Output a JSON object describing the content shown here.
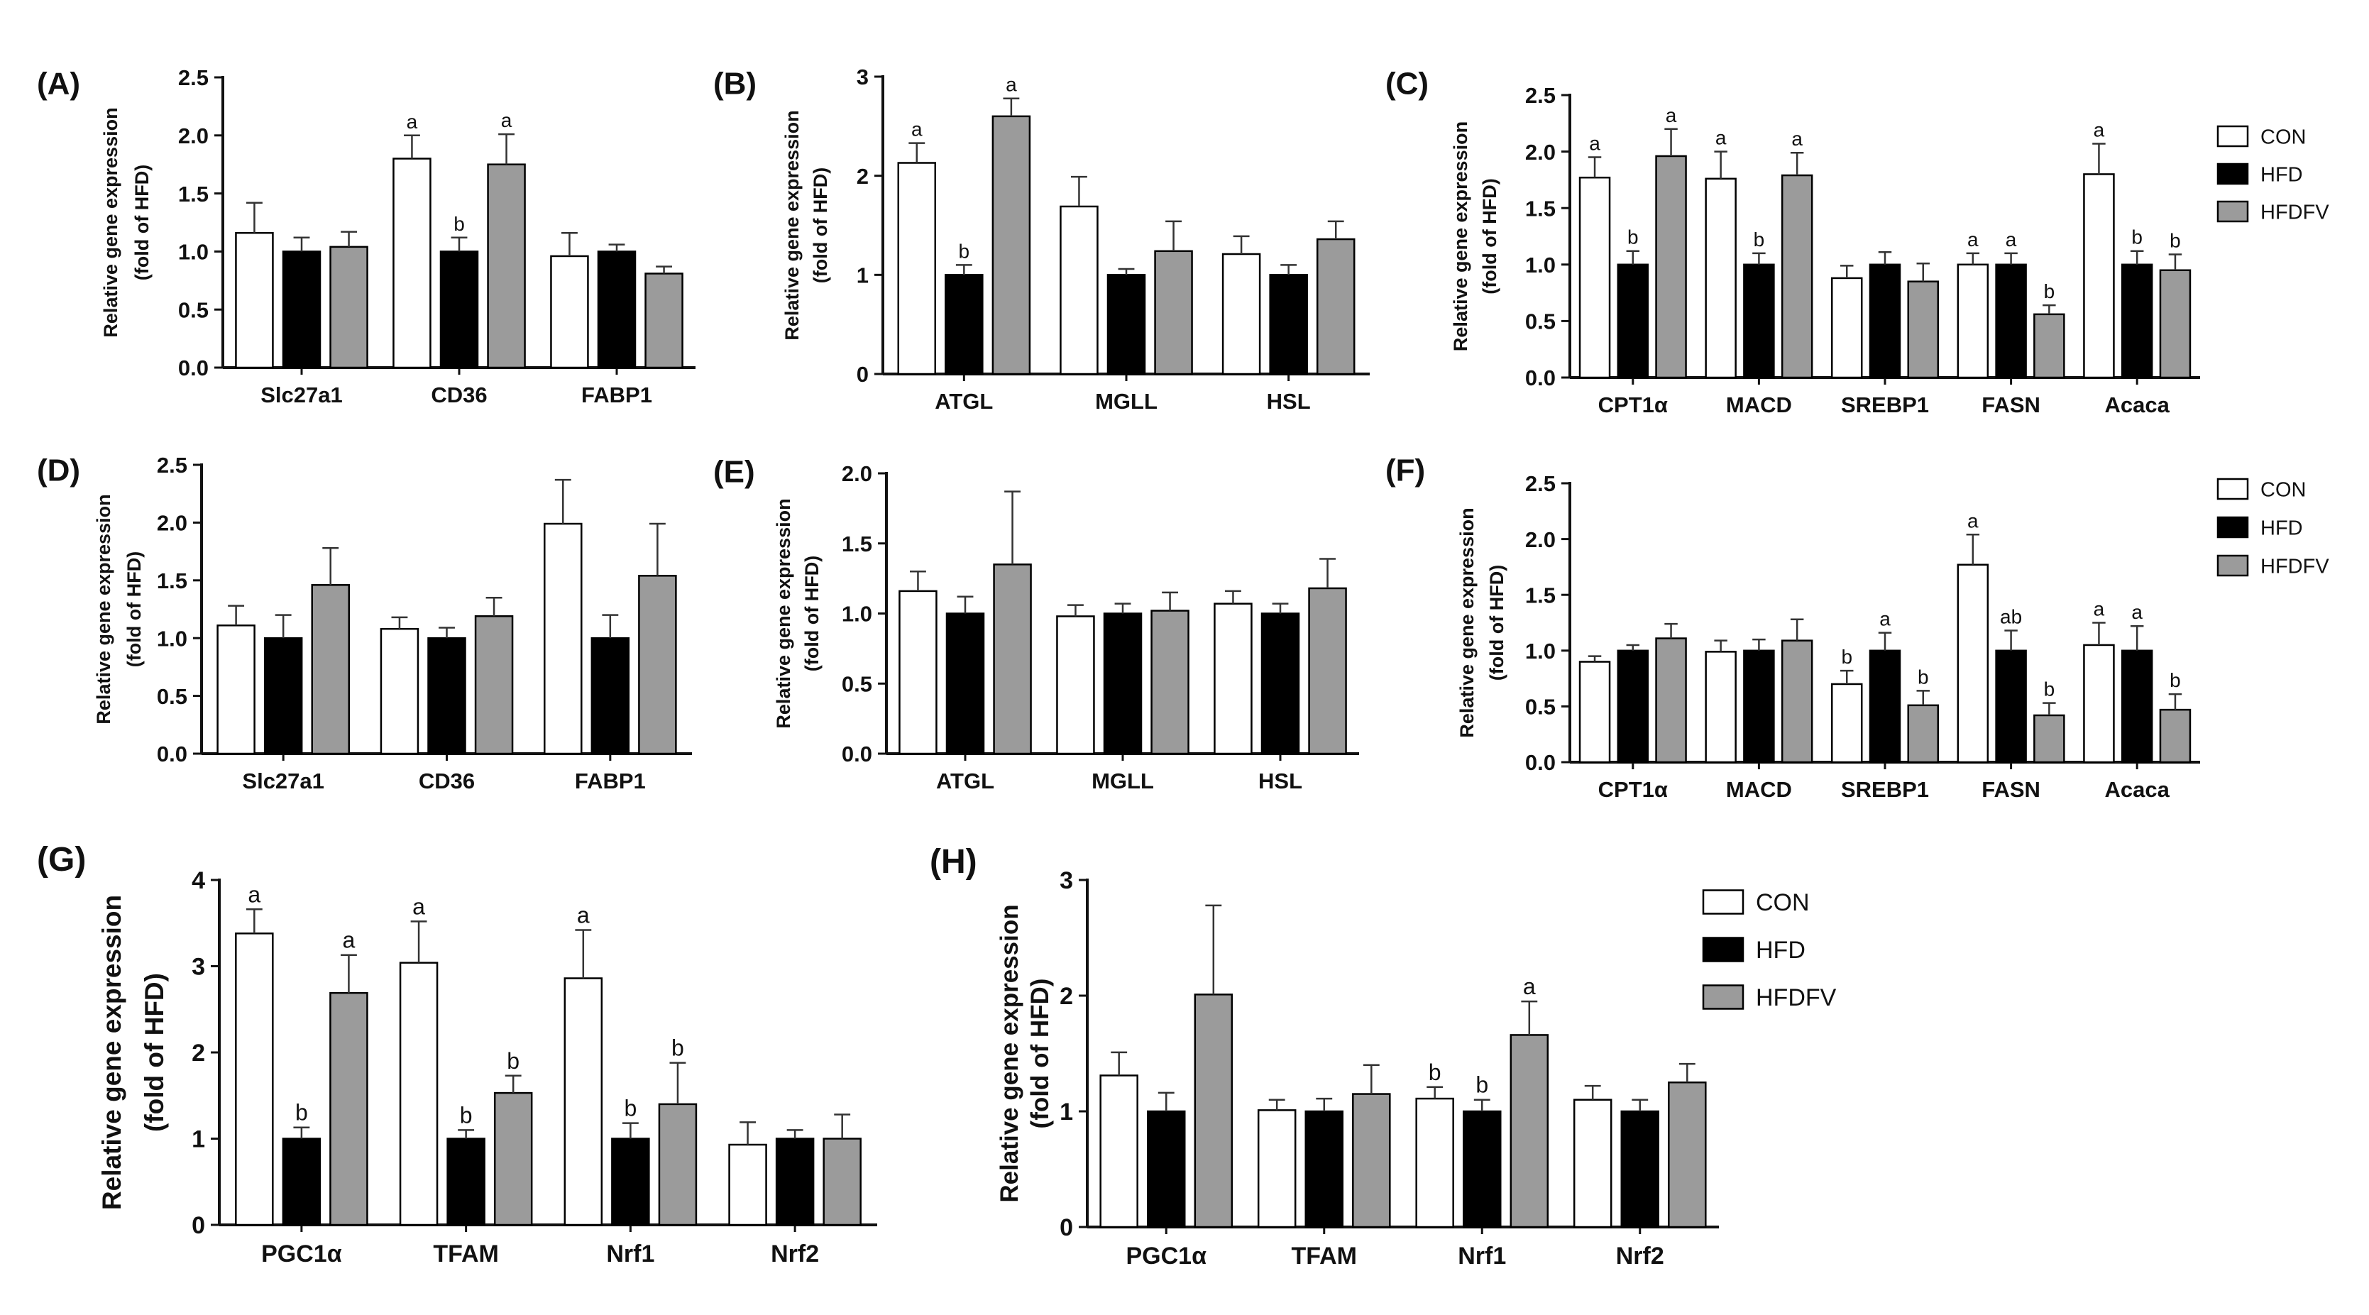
{
  "series_names": [
    "CON",
    "HFD",
    "HFDFV"
  ],
  "colors": {
    "CON": "#ffffff",
    "HFD": "#000000",
    "HFDFV": "#9b9b9b",
    "axis": "#111111",
    "error": "#333333"
  },
  "chart_data": [
    {
      "panel": "(A)",
      "type": "bar",
      "ylabel": "Relative gene expression",
      "ylabel2": "(fold of HFD)",
      "ylim": [
        0,
        2.5
      ],
      "yticks": [
        "0.0",
        "0.5",
        "1.0",
        "1.5",
        "2.0",
        "2.5"
      ],
      "categories": [
        "Slc27a1",
        "CD36",
        "FABP1"
      ],
      "series": [
        {
          "name": "CON",
          "values": [
            1.16,
            1.8,
            0.96
          ],
          "errors": [
            0.26,
            0.2,
            0.2
          ],
          "labels": [
            "",
            "a",
            ""
          ]
        },
        {
          "name": "HFD",
          "values": [
            1.0,
            1.0,
            1.0
          ],
          "errors": [
            0.12,
            0.12,
            0.06
          ],
          "labels": [
            "",
            "b",
            ""
          ]
        },
        {
          "name": "HFDFV",
          "values": [
            1.04,
            1.75,
            0.81
          ],
          "errors": [
            0.13,
            0.26,
            0.06
          ],
          "labels": [
            "",
            "a",
            ""
          ]
        }
      ]
    },
    {
      "panel": "(B)",
      "type": "bar",
      "ylabel": "Relative gene expression",
      "ylabel2": "(fold of HFD)",
      "ylim": [
        0,
        3
      ],
      "yticks": [
        "0",
        "1",
        "2",
        "3"
      ],
      "categories": [
        "ATGL",
        "MGLL",
        "HSL"
      ],
      "series": [
        {
          "name": "CON",
          "values": [
            2.13,
            1.69,
            1.21
          ],
          "errors": [
            0.2,
            0.3,
            0.18
          ],
          "labels": [
            "a",
            "",
            ""
          ]
        },
        {
          "name": "HFD",
          "values": [
            1.0,
            1.0,
            1.0
          ],
          "errors": [
            0.1,
            0.06,
            0.1
          ],
          "labels": [
            "b",
            "",
            ""
          ]
        },
        {
          "name": "HFDFV",
          "values": [
            2.6,
            1.24,
            1.36
          ],
          "errors": [
            0.18,
            0.3,
            0.18
          ],
          "labels": [
            "a",
            "",
            ""
          ]
        }
      ]
    },
    {
      "panel": "(C)",
      "type": "bar",
      "ylabel": "Relative gene expression",
      "ylabel2": "(fold of HFD)",
      "ylim": [
        0,
        2.5
      ],
      "yticks": [
        "0.0",
        "0.5",
        "1.0",
        "1.5",
        "2.0",
        "2.5"
      ],
      "categories": [
        "CPT1α",
        "MACD",
        "SREBP1",
        "FASN",
        "Acaca"
      ],
      "legend": "right",
      "series": [
        {
          "name": "CON",
          "values": [
            1.77,
            1.76,
            0.88,
            1.0,
            1.8
          ],
          "errors": [
            0.18,
            0.24,
            0.11,
            0.1,
            0.27
          ],
          "labels": [
            "a",
            "a",
            "",
            "a",
            "a"
          ]
        },
        {
          "name": "HFD",
          "values": [
            1.0,
            1.0,
            1.0,
            1.0,
            1.0
          ],
          "errors": [
            0.12,
            0.1,
            0.11,
            0.1,
            0.12
          ],
          "labels": [
            "b",
            "b",
            "",
            "a",
            "b"
          ]
        },
        {
          "name": "HFDFV",
          "values": [
            1.96,
            1.79,
            0.85,
            0.56,
            0.95
          ],
          "errors": [
            0.24,
            0.2,
            0.16,
            0.08,
            0.14
          ],
          "labels": [
            "a",
            "a",
            "",
            "b",
            "b"
          ]
        }
      ]
    },
    {
      "panel": "(D)",
      "type": "bar",
      "ylabel": "Relative gene expression",
      "ylabel2": "(fold of HFD)",
      "ylim": [
        0,
        2.5
      ],
      "yticks": [
        "0.0",
        "0.5",
        "1.0",
        "1.5",
        "2.0",
        "2.5"
      ],
      "categories": [
        "Slc27a1",
        "CD36",
        "FABP1"
      ],
      "series": [
        {
          "name": "CON",
          "values": [
            1.11,
            1.08,
            1.99
          ],
          "errors": [
            0.17,
            0.1,
            0.38
          ],
          "labels": [
            "",
            "",
            ""
          ]
        },
        {
          "name": "HFD",
          "values": [
            1.0,
            1.0,
            1.0
          ],
          "errors": [
            0.2,
            0.09,
            0.2
          ],
          "labels": [
            "",
            "",
            ""
          ]
        },
        {
          "name": "HFDFV",
          "values": [
            1.46,
            1.19,
            1.54
          ],
          "errors": [
            0.32,
            0.16,
            0.45
          ],
          "labels": [
            "",
            "",
            ""
          ]
        }
      ]
    },
    {
      "panel": "(E)",
      "type": "bar",
      "ylabel": "Relative gene expression",
      "ylabel2": "(fold of HFD)",
      "ylim": [
        0,
        2.0
      ],
      "yticks": [
        "0.0",
        "0.5",
        "1.0",
        "1.5",
        "2.0"
      ],
      "categories": [
        "ATGL",
        "MGLL",
        "HSL"
      ],
      "series": [
        {
          "name": "CON",
          "values": [
            1.16,
            0.98,
            1.07
          ],
          "errors": [
            0.14,
            0.08,
            0.09
          ],
          "labels": [
            "",
            "",
            ""
          ]
        },
        {
          "name": "HFD",
          "values": [
            1.0,
            1.0,
            1.0
          ],
          "errors": [
            0.12,
            0.07,
            0.07
          ],
          "labels": [
            "",
            "",
            ""
          ]
        },
        {
          "name": "HFDFV",
          "values": [
            1.35,
            1.02,
            1.18
          ],
          "errors": [
            0.52,
            0.13,
            0.21
          ],
          "labels": [
            "",
            "",
            ""
          ]
        }
      ]
    },
    {
      "panel": "(F)",
      "type": "bar",
      "ylabel": "Relative gene expression",
      "ylabel2": "(fold of HFD)",
      "ylim": [
        0,
        2.5
      ],
      "yticks": [
        "0.0",
        "0.5",
        "1.0",
        "1.5",
        "2.0",
        "2.5"
      ],
      "categories": [
        "CPT1α",
        "MACD",
        "SREBP1",
        "FASN",
        "Acaca"
      ],
      "legend": "right",
      "series": [
        {
          "name": "CON",
          "values": [
            0.9,
            0.99,
            0.7,
            1.77,
            1.05
          ],
          "errors": [
            0.05,
            0.1,
            0.12,
            0.27,
            0.2
          ],
          "labels": [
            "",
            "",
            "b",
            "a",
            "a"
          ]
        },
        {
          "name": "HFD",
          "values": [
            1.0,
            1.0,
            1.0,
            1.0,
            1.0
          ],
          "errors": [
            0.05,
            0.1,
            0.16,
            0.18,
            0.22
          ],
          "labels": [
            "",
            "",
            "a",
            "ab",
            "a"
          ]
        },
        {
          "name": "HFDFV",
          "values": [
            1.11,
            1.09,
            0.51,
            0.42,
            0.47
          ],
          "errors": [
            0.13,
            0.19,
            0.13,
            0.11,
            0.14
          ],
          "labels": [
            "",
            "",
            "b",
            "b",
            "b"
          ]
        }
      ]
    },
    {
      "panel": "(G)",
      "type": "bar",
      "ylabel": "Relative gene expression",
      "ylabel2": "(fold of HFD)",
      "ylim": [
        0,
        4
      ],
      "yticks": [
        "0",
        "1",
        "2",
        "3",
        "4"
      ],
      "categories": [
        "PGC1α",
        "TFAM",
        "Nrf1",
        "Nrf2"
      ],
      "series": [
        {
          "name": "CON",
          "values": [
            3.38,
            3.04,
            2.86,
            0.93
          ],
          "errors": [
            0.28,
            0.48,
            0.56,
            0.26
          ],
          "labels": [
            "a",
            "a",
            "a",
            ""
          ]
        },
        {
          "name": "HFD",
          "values": [
            1.0,
            1.0,
            1.0,
            1.0
          ],
          "errors": [
            0.13,
            0.1,
            0.18,
            0.1
          ],
          "labels": [
            "b",
            "b",
            "b",
            ""
          ]
        },
        {
          "name": "HFDFV",
          "values": [
            2.69,
            1.53,
            1.4,
            1.0
          ],
          "errors": [
            0.44,
            0.2,
            0.48,
            0.28
          ],
          "labels": [
            "a",
            "b",
            "b",
            ""
          ]
        }
      ]
    },
    {
      "panel": "(H)",
      "type": "bar",
      "ylabel": "Relative gene expression",
      "ylabel2": "(fold of HFD)",
      "ylim": [
        0,
        3
      ],
      "yticks": [
        "0",
        "1",
        "2",
        "3"
      ],
      "categories": [
        "PGC1α",
        "TFAM",
        "Nrf1",
        "Nrf2"
      ],
      "legend": "right",
      "series": [
        {
          "name": "CON",
          "values": [
            1.31,
            1.01,
            1.11,
            1.1
          ],
          "errors": [
            0.2,
            0.09,
            0.1,
            0.12
          ],
          "labels": [
            "",
            "",
            "b",
            ""
          ]
        },
        {
          "name": "HFD",
          "values": [
            1.0,
            1.0,
            1.0,
            1.0
          ],
          "errors": [
            0.16,
            0.11,
            0.1,
            0.1
          ],
          "labels": [
            "",
            "",
            "b",
            ""
          ]
        },
        {
          "name": "HFDFV",
          "values": [
            2.01,
            1.15,
            1.66,
            1.25
          ],
          "errors": [
            0.77,
            0.25,
            0.29,
            0.16
          ],
          "labels": [
            "",
            "",
            "a",
            ""
          ]
        }
      ]
    }
  ]
}
